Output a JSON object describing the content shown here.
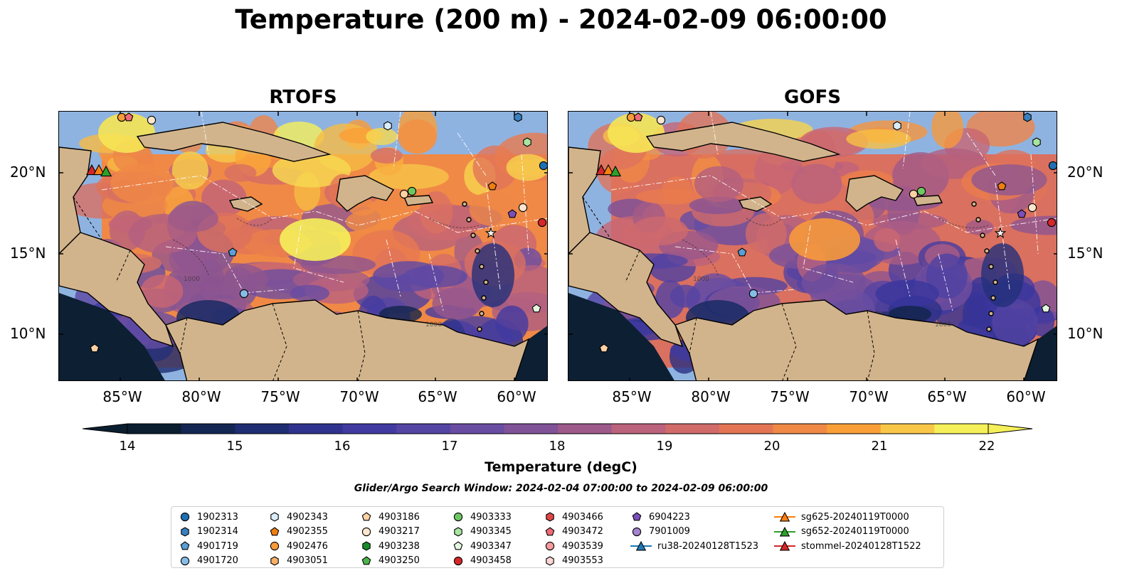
{
  "figure": {
    "title": "Temperature (200 m) - 2024-02-09 06:00:00",
    "search_window": "Glider/Argo Search Window: 2024-02-04 07:00:00 to 2024-02-09 06:00:00"
  },
  "panels": [
    {
      "title": "RTOFS",
      "model": "RTOFS"
    },
    {
      "title": "GOFS",
      "model": "GOFS"
    }
  ],
  "axes": {
    "lat_labels": [
      "20°N",
      "15°N",
      "10°N"
    ],
    "lon_labels": [
      "85°W",
      "80°W",
      "75°W",
      "70°W",
      "65°W",
      "60°W"
    ],
    "lon_range": [
      -89,
      -58
    ],
    "lat_range": [
      7,
      24
    ]
  },
  "colorbar": {
    "label": "Temperature (degC)",
    "ticks": [
      "14",
      "15",
      "16",
      "17",
      "18",
      "19",
      "20",
      "21",
      "22"
    ],
    "min": 14,
    "max": 22,
    "step": 0.5,
    "colormap": "thermal",
    "extend": "both"
  },
  "colors": {
    "land": "#d2b48c",
    "shelf": "#8fb3e0",
    "deep_cold": "#0d1f33",
    "warm": "#f5f05a"
  },
  "legend": {
    "columns": [
      [
        {
          "label": "1902313",
          "marker": "circle",
          "color": "#1f6fb4"
        },
        {
          "label": "1902314",
          "marker": "hexagon",
          "color": "#3a80c0"
        },
        {
          "label": "4901719",
          "marker": "pentagon",
          "color": "#5a9fd6"
        },
        {
          "label": "4901720",
          "marker": "circle",
          "color": "#86bde6"
        }
      ],
      [
        {
          "label": "4902343",
          "marker": "hexagon",
          "color": "#d8ecfa"
        },
        {
          "label": "4902355",
          "marker": "pentagon",
          "color": "#f07d11"
        },
        {
          "label": "4902476",
          "marker": "circle",
          "color": "#f99a3a"
        },
        {
          "label": "4903051",
          "marker": "hexagon",
          "color": "#fbb066"
        }
      ],
      [
        {
          "label": "4903186",
          "marker": "pentagon",
          "color": "#fdd2a5"
        },
        {
          "label": "4903217",
          "marker": "circle",
          "color": "#fde6cf"
        },
        {
          "label": "4903238",
          "marker": "hexagon",
          "color": "#1a8a2c"
        },
        {
          "label": "4903250",
          "marker": "pentagon",
          "color": "#4bb54a"
        }
      ],
      [
        {
          "label": "4903333",
          "marker": "circle",
          "color": "#6cc962"
        },
        {
          "label": "4903345",
          "marker": "hexagon",
          "color": "#a8e5a0"
        },
        {
          "label": "4903347",
          "marker": "pentagon",
          "color": "#e3f7df"
        },
        {
          "label": "4903458",
          "marker": "circle",
          "color": "#d62728"
        }
      ],
      [
        {
          "label": "4903466",
          "marker": "hexagon",
          "color": "#e04647"
        },
        {
          "label": "4903472",
          "marker": "pentagon",
          "color": "#ee6b78"
        },
        {
          "label": "4903539",
          "marker": "circle",
          "color": "#f79b9c"
        },
        {
          "label": "4903553",
          "marker": "hexagon",
          "color": "#fcd5d5"
        }
      ],
      [
        {
          "label": "6904223",
          "marker": "pentagon",
          "color": "#7b4fb8"
        },
        {
          "label": "7901009",
          "marker": "circle",
          "color": "#a583cf"
        },
        {
          "label": "ru38-20240128T1523",
          "marker": "triangle-line",
          "color": "#1f77b4"
        }
      ],
      [
        {
          "label": "sg625-20240119T0000",
          "marker": "triangle-line",
          "color": "#ff7f0e"
        },
        {
          "label": "sg652-20240119T0000",
          "marker": "triangle-line",
          "color": "#2ca02c"
        },
        {
          "label": "stommel-20240128T1522",
          "marker": "triangle-line",
          "color": "#d62728"
        }
      ]
    ]
  }
}
